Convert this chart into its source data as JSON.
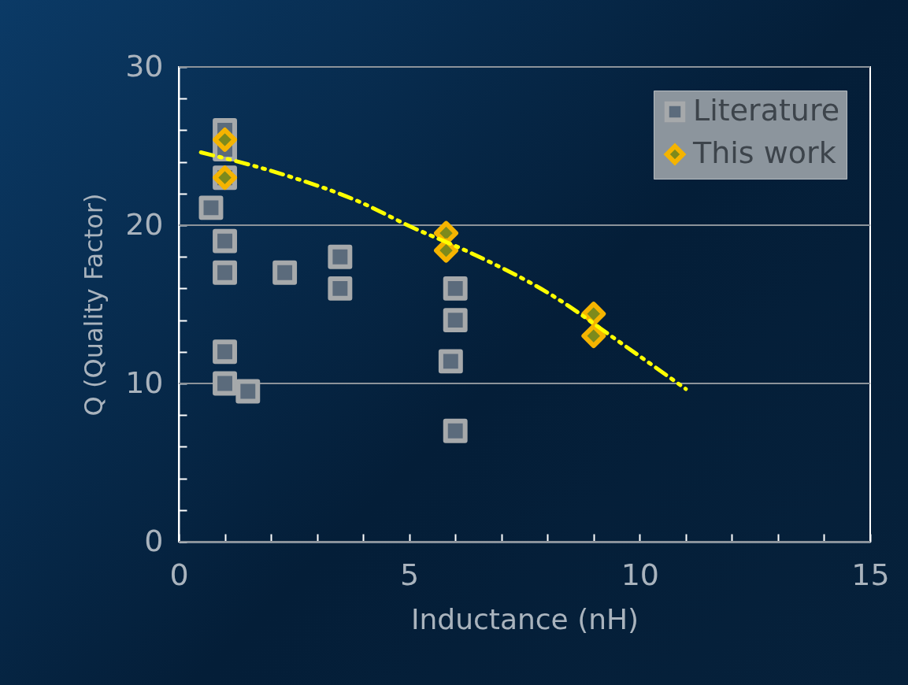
{
  "chart_data": {
    "type": "scatter",
    "xlabel": "Inductance (nH)",
    "ylabel": "Q (Quality Factor)",
    "xlim": [
      0,
      15
    ],
    "ylim": [
      0,
      30
    ],
    "xticks": [
      0,
      {
        "value": 1,
        "label": null
      },
      {
        "value": 2,
        "label": null
      },
      {
        "value": 3,
        "label": null
      },
      {
        "value": 4,
        "label": null
      },
      5,
      {
        "value": 6,
        "label": null
      },
      {
        "value": 7,
        "label": null
      },
      {
        "value": 8,
        "label": null
      },
      {
        "value": 9,
        "label": null
      },
      10,
      {
        "value": 11,
        "label": null
      },
      {
        "value": 12,
        "label": null
      },
      {
        "value": 13,
        "label": null
      },
      {
        "value": 14,
        "label": null
      },
      15
    ],
    "yticks": [
      0,
      {
        "value": 2,
        "label": null
      },
      {
        "value": 4,
        "label": null
      },
      {
        "value": 6,
        "label": null
      },
      {
        "value": 8,
        "label": null
      },
      10,
      {
        "value": 12,
        "label": null
      },
      {
        "value": 14,
        "label": null
      },
      {
        "value": 16,
        "label": null
      },
      {
        "value": 18,
        "label": null
      },
      20,
      {
        "value": 22,
        "label": null
      },
      {
        "value": 24,
        "label": null
      },
      {
        "value": 26,
        "label": null
      },
      {
        "value": 28,
        "label": null
      },
      30
    ],
    "grid": "y",
    "legend": "top right",
    "series": [
      {
        "name": "Literature",
        "marker": "square",
        "color": "#a6a9ab",
        "x": [
          0.7,
          1.0,
          1.0,
          1.0,
          1.0,
          1.0,
          1.0,
          1.0,
          1.5,
          2.3,
          3.5,
          3.5,
          6.0,
          6.0,
          5.9,
          6.0
        ],
        "values": [
          21.1,
          26.0,
          24.8,
          23.0,
          19.0,
          17.0,
          12.0,
          10.0,
          9.5,
          17.0,
          18.0,
          16.0,
          16.0,
          14.0,
          11.4,
          7.0
        ]
      },
      {
        "name": "This work",
        "marker": "diamond",
        "color": "#f5b400",
        "x": [
          1.0,
          1.0,
          5.8,
          5.8,
          9.0,
          9.0
        ],
        "values": [
          25.4,
          23.0,
          19.5,
          18.4,
          14.4,
          13.0
        ]
      },
      {
        "type": "line",
        "marker": "none",
        "line_style": "dashed",
        "color": "#ffff00",
        "x": [
          0.48,
          2.27,
          3.98,
          5.0,
          6.37,
          8.08,
          9.62,
          11.0
        ],
        "values": [
          24.6,
          23.2,
          21.4,
          19.95,
          18.2,
          15.6,
          12.5,
          9.65
        ]
      }
    ]
  }
}
